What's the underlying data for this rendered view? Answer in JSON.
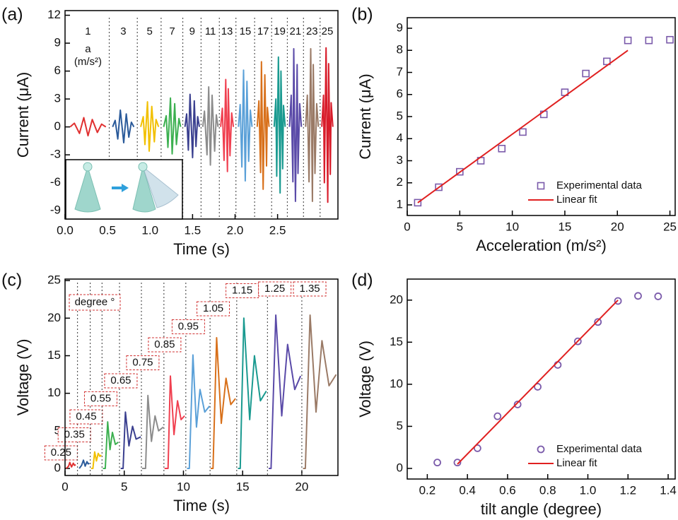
{
  "chart_data": [
    {
      "type": "line",
      "panel_label": "(a)",
      "x_label": "Time (s)",
      "y_label": "Current (μA)",
      "annotations": [
        "a",
        "(m/s²)"
      ],
      "xlim": [
        0,
        3.21
      ],
      "ylim": [
        -9.9,
        12.5
      ],
      "xticks": [
        {
          "value": 0,
          "label": "0.0"
        },
        0.5,
        {
          "value": 1,
          "label": "1.0"
        },
        1.5,
        {
          "value": 2,
          "label": "2.0"
        },
        2.5
      ],
      "yticks": [
        -9,
        -6,
        -3,
        0,
        3,
        6,
        9,
        12
      ],
      "series": [
        {
          "name": "1",
          "color": "#e03030",
          "x": [
            0.06,
            0.11,
            0.17,
            0.22,
            0.27,
            0.32,
            0.38,
            0.43,
            0.48
          ],
          "values": [
            0,
            0.4,
            -0.7,
            1,
            -0.95,
            0.8,
            -0.6,
            0.3,
            0
          ]
        },
        {
          "name": "3",
          "color": "#2a5a9a",
          "x": [
            0.56,
            0.59,
            0.62,
            0.65,
            0.69,
            0.72,
            0.75,
            0.78,
            0.81
          ],
          "values": [
            0,
            0.7,
            -1.3,
            1.8,
            -1.7,
            1.4,
            -1.1,
            0.5,
            0
          ]
        },
        {
          "name": "5",
          "color": "#f2c000",
          "x": [
            0.89,
            0.92,
            0.94,
            0.97,
            0.99,
            1.02,
            1.05,
            1.07,
            1.1
          ],
          "values": [
            0,
            1.1,
            -1.9,
            2.7,
            -2.6,
            2.2,
            -1.6,
            0.8,
            0
          ]
        },
        {
          "name": "7",
          "color": "#3cb050",
          "x": [
            1.16,
            1.19,
            1.21,
            1.24,
            1.26,
            1.29,
            1.31,
            1.34,
            1.36
          ],
          "values": [
            0,
            1.2,
            -2.2,
            3.1,
            -2.9,
            2.5,
            -1.9,
            0.9,
            0
          ]
        },
        {
          "name": "9",
          "color": "#3a3f8f",
          "x": [
            1.41,
            1.43,
            1.45,
            1.47,
            1.5,
            1.52,
            1.54,
            1.56,
            1.58
          ],
          "values": [
            0,
            1.4,
            -2.5,
            3.5,
            -3.3,
            2.8,
            -2.1,
            1.1,
            0
          ]
        },
        {
          "name": "11",
          "color": "#8c8c8c",
          "x": [
            1.62,
            1.64,
            1.67,
            1.69,
            1.71,
            1.73,
            1.76,
            1.78,
            1.8
          ],
          "values": [
            0,
            1.7,
            -3,
            4.3,
            -4.1,
            3.4,
            -2.6,
            1.3,
            0
          ]
        },
        {
          "name": "13",
          "color": "#f04050",
          "x": [
            1.83,
            1.85,
            1.87,
            1.89,
            1.91,
            1.92,
            1.94,
            1.96,
            1.98
          ],
          "values": [
            0,
            2,
            -3.6,
            5.1,
            -4.8,
            4.1,
            -3.1,
            1.5,
            0
          ]
        },
        {
          "name": "15",
          "color": "#5aa0d8",
          "x": [
            2.04,
            2.06,
            2.08,
            2.1,
            2.12,
            2.14,
            2.16,
            2.18,
            2.2
          ],
          "values": [
            0,
            2.4,
            -4.3,
            6.1,
            -5.8,
            4.9,
            -3.7,
            1.8,
            0
          ]
        },
        {
          "name": "17",
          "color": "#d8701a",
          "x": [
            2.26,
            2.28,
            2.3,
            2.31,
            2.33,
            2.35,
            2.37,
            2.38,
            2.4
          ],
          "values": [
            0,
            2.8,
            -4.9,
            7,
            -6.7,
            5.6,
            -4.2,
            2.1,
            0
          ]
        },
        {
          "name": "19",
          "color": "#1a9a90",
          "x": [
            2.46,
            2.48,
            2.49,
            2.51,
            2.53,
            2.54,
            2.56,
            2.57,
            2.59
          ],
          "values": [
            0,
            3,
            -5.3,
            7.5,
            -7.1,
            6,
            -4.5,
            2.3,
            0
          ]
        },
        {
          "name": "21",
          "color": "#5a4aa8",
          "x": [
            2.64,
            2.66,
            2.68,
            2.69,
            2.71,
            2.73,
            2.74,
            2.76,
            2.78
          ],
          "values": [
            0,
            3.4,
            -5.9,
            8.4,
            -8,
            6.7,
            -5,
            2.5,
            0
          ]
        },
        {
          "name": "23",
          "color": "#9a7a66",
          "x": [
            2.83,
            2.85,
            2.87,
            2.89,
            2.91,
            2.92,
            2.94,
            2.96,
            2.98
          ],
          "values": [
            0,
            3.4,
            -5.9,
            8.4,
            -8,
            6.7,
            -5,
            2.5,
            0
          ]
        },
        {
          "name": "25",
          "color": "#d81c2a",
          "x": [
            3.02,
            3.04,
            3.05,
            3.07,
            3.09,
            3.1,
            3.12,
            3.13,
            3.15
          ],
          "values": [
            0,
            3.4,
            -6,
            8.5,
            -8.1,
            6.8,
            -5.1,
            2.6,
            0
          ]
        }
      ]
    },
    {
      "type": "scatter",
      "panel_label": "(b)",
      "x_label": "Acceleration (m/s²)",
      "y_label": "Current (μA)",
      "xlim": [
        0,
        25.5
      ],
      "ylim": [
        0.52,
        9.48
      ],
      "xticks": [
        0,
        5,
        10,
        15,
        20,
        25
      ],
      "yticks": [
        1,
        2,
        3,
        4,
        5,
        6,
        7,
        8,
        9
      ],
      "legend": "lower right",
      "series": [
        {
          "name": "Experimental data",
          "color": "#7a5aaa",
          "marker": "square",
          "x": [
            1,
            3,
            5,
            7,
            9,
            11,
            13,
            15,
            17,
            19,
            21,
            23,
            25
          ],
          "values": [
            1.1,
            1.8,
            2.5,
            3.0,
            3.55,
            4.3,
            5.1,
            6.1,
            6.95,
            7.5,
            8.45,
            8.45,
            8.48
          ]
        },
        {
          "name": "Linear fit",
          "color": "#e02020",
          "mode": "line",
          "x": [
            1,
            21
          ],
          "values": [
            1.1,
            8.0
          ]
        }
      ]
    },
    {
      "type": "line",
      "panel_label": "(c)",
      "x_label": "Time (s)",
      "y_label": "Voltage (V)",
      "annotations": [
        "degree °"
      ],
      "xlim": [
        0,
        23.05
      ],
      "ylim": [
        -0.94,
        25.2
      ],
      "xticks": [
        0,
        5,
        10,
        15,
        20
      ],
      "yticks": [
        0,
        5,
        10,
        15,
        20,
        25
      ],
      "series": [
        {
          "name": "0.25",
          "color": "#e03030",
          "x": [
            0.1,
            0.3,
            0.4,
            0.55,
            0.7,
            0.8,
            0.9
          ],
          "values": [
            0,
            0.3,
            0.8,
            0.2,
            0.7,
            0.4,
            0.5
          ]
        },
        {
          "name": "0.35",
          "color": "#2a5a9a",
          "x": [
            1.2,
            1.4,
            1.55,
            1.7,
            1.85,
            1.95,
            2.05
          ],
          "values": [
            0,
            0.4,
            1.1,
            0.3,
            0.9,
            0.6,
            0.7
          ]
        },
        {
          "name": "0.45",
          "color": "#f2c000",
          "x": [
            2.2,
            2.35,
            2.5,
            2.65,
            2.8,
            2.95,
            3.05
          ],
          "values": [
            0,
            0,
            2.2,
            1.0,
            2.0,
            1.6,
            1.8
          ]
        },
        {
          "name": "0.55",
          "color": "#3cb050",
          "x": [
            3.2,
            3.4,
            3.6,
            3.8,
            4.0,
            4.25,
            4.5
          ],
          "values": [
            0,
            0,
            6.2,
            2.5,
            4.8,
            3.2,
            3.5
          ]
        },
        {
          "name": "0.65",
          "color": "#3a3f8f",
          "x": [
            4.7,
            4.9,
            5.1,
            5.4,
            5.7,
            6.0,
            6.4
          ],
          "values": [
            0,
            0,
            7.5,
            3.0,
            5.6,
            3.9,
            4.2
          ]
        },
        {
          "name": "0.75",
          "color": "#8c8c8c",
          "x": [
            6.5,
            6.8,
            7.0,
            7.3,
            7.6,
            7.9,
            8.3
          ],
          "values": [
            0,
            0,
            9.7,
            3.6,
            7.0,
            5.0,
            5.5
          ]
        },
        {
          "name": "0.85",
          "color": "#f04050",
          "x": [
            8.4,
            8.7,
            8.9,
            9.2,
            9.5,
            9.8,
            10.1
          ],
          "values": [
            0,
            0,
            12.3,
            4.5,
            9.0,
            6.5,
            7.0
          ]
        },
        {
          "name": "0.95",
          "color": "#5aa0d8",
          "x": [
            10.3,
            10.5,
            10.8,
            11.1,
            11.4,
            11.8,
            12.2
          ],
          "values": [
            0,
            0,
            15.1,
            5.5,
            10.5,
            7.5,
            8.3
          ]
        },
        {
          "name": "1.05",
          "color": "#d8701a",
          "x": [
            12.3,
            12.5,
            12.8,
            13.2,
            13.6,
            14.0,
            14.4
          ],
          "values": [
            0,
            0,
            17.4,
            6.0,
            12.0,
            8.5,
            9.3
          ]
        },
        {
          "name": "1.15",
          "color": "#1a9a90",
          "x": [
            14.6,
            14.8,
            15.1,
            15.6,
            16.0,
            16.5,
            17.0
          ],
          "values": [
            0,
            0,
            20.0,
            6.5,
            15.0,
            9.0,
            10.3
          ]
        },
        {
          "name": "1.25",
          "color": "#5a4aa8",
          "x": [
            17.2,
            17.4,
            17.8,
            18.3,
            18.8,
            19.4,
            19.9
          ],
          "values": [
            0,
            0,
            20.4,
            7.0,
            16.5,
            10.5,
            12.3
          ]
        },
        {
          "name": "1.35",
          "color": "#9a7a66",
          "x": [
            20.1,
            20.3,
            20.7,
            21.2,
            21.7,
            22.3,
            22.9
          ],
          "values": [
            0,
            0,
            20.4,
            7.5,
            17.0,
            11.0,
            12.5
          ]
        }
      ]
    },
    {
      "type": "scatter",
      "panel_label": "(d)",
      "x_label": "tilt angle (degree)",
      "y_label": "Voltage (V)",
      "xlim": [
        0.1,
        1.435
      ],
      "ylim": [
        -1.26,
        22.5
      ],
      "xticks": [
        0.2,
        0.4,
        0.6,
        0.8,
        {
          "value": 1,
          "label": "1.0"
        },
        1.2,
        1.4
      ],
      "yticks": [
        0,
        5,
        10,
        15,
        20
      ],
      "legend": "lower right",
      "series": [
        {
          "name": "Experimental data",
          "color": "#7a5aaa",
          "marker": "circle",
          "x": [
            0.25,
            0.35,
            0.45,
            0.55,
            0.65,
            0.75,
            0.85,
            0.95,
            1.05,
            1.15,
            1.25,
            1.35
          ],
          "values": [
            0.7,
            0.7,
            2.4,
            6.2,
            7.6,
            9.7,
            12.3,
            15.1,
            17.4,
            19.9,
            20.5,
            20.45
          ]
        },
        {
          "name": "Linear fit",
          "color": "#e02020",
          "mode": "line",
          "x": [
            0.35,
            1.15
          ],
          "values": [
            0.5,
            20.0
          ]
        }
      ]
    }
  ]
}
